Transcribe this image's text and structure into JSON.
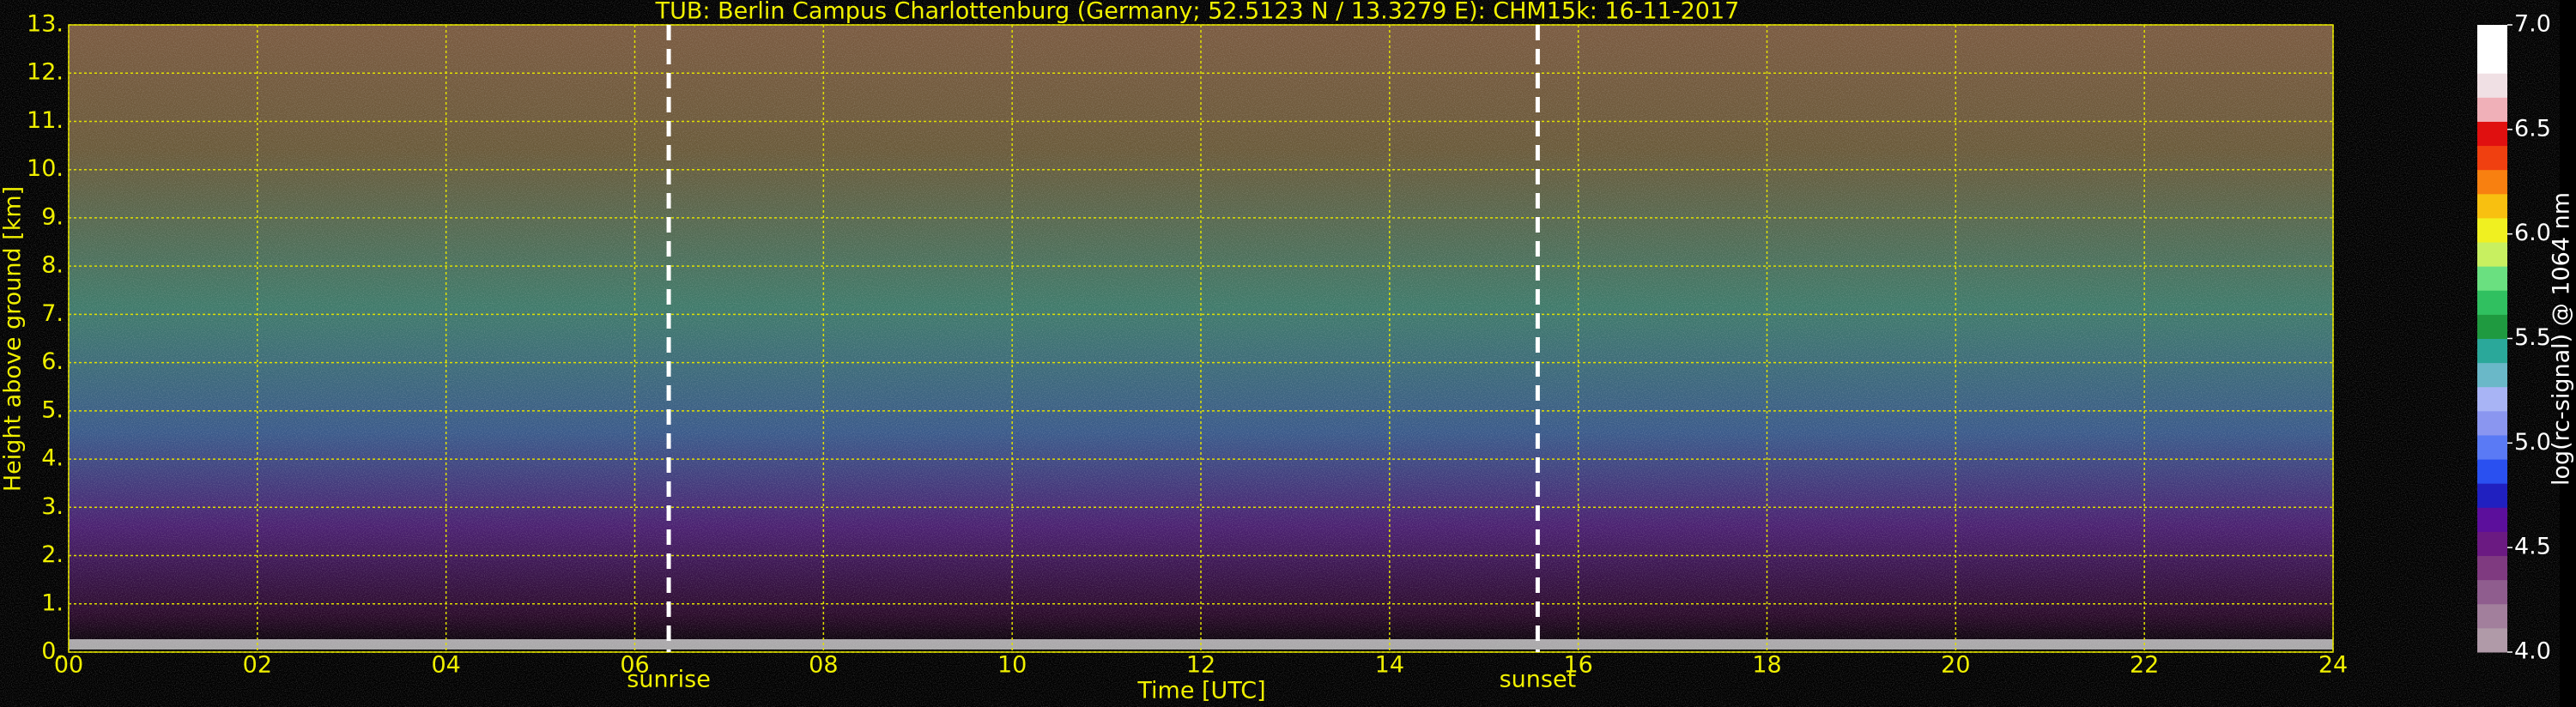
{
  "chart_data": {
    "type": "heatmap",
    "title": "TUB: Berlin Campus Charlottenburg (Germany; 52.5123 N / 13.3279 E):    CHM15k: 16-11-2017",
    "x_label": "Time [UTC]",
    "y_label": "Height above ground [km]",
    "xlim": [
      0,
      24
    ],
    "xticks": [
      {
        "value": 0,
        "label": "00"
      },
      {
        "value": 2,
        "label": "02"
      },
      {
        "value": 4,
        "label": "04"
      },
      {
        "value": 6,
        "label": "06"
      },
      {
        "value": 8,
        "label": "08"
      },
      10,
      12,
      14,
      16,
      18,
      20,
      22,
      24
    ],
    "ylim": [
      0,
      13
    ],
    "yticks": [
      {
        "value": 0,
        "label": "0."
      },
      {
        "value": 1,
        "label": "1."
      },
      {
        "value": 2,
        "label": "2."
      },
      {
        "value": 3,
        "label": "3."
      },
      {
        "value": 4,
        "label": "4."
      },
      {
        "value": 5,
        "label": "5."
      },
      {
        "value": 6,
        "label": "6."
      },
      {
        "value": 7,
        "label": "7."
      },
      {
        "value": 8,
        "label": "8."
      },
      {
        "value": 9,
        "label": "9."
      },
      {
        "value": 10,
        "label": "10."
      },
      {
        "value": 11,
        "label": "11."
      },
      {
        "value": 12,
        "label": "12."
      },
      {
        "value": 13,
        "label": "13."
      }
    ],
    "grid": true,
    "grid_color": "#e0e000",
    "text_color": "#f0f000",
    "annotations": [
      {
        "label": "sunrise",
        "x": 6.36
      },
      {
        "label": "sunset",
        "x": 15.57
      }
    ],
    "colorbar": {
      "label": "log(rc-signal) @ 1064 nm",
      "lim": [
        4,
        7
      ],
      "ticks": [
        {
          "value": 4,
          "label": "4.0"
        },
        4.5,
        {
          "value": 5,
          "label": "5.0"
        },
        5.5,
        {
          "value": 6,
          "label": "6.0"
        },
        6.5,
        {
          "value": 7,
          "label": "7.0"
        }
      ],
      "colors": [
        "#b09aa8",
        "#a27f9c",
        "#8f5d8e",
        "#7f3a80",
        "#6b1a82",
        "#5c0f9c",
        "#2020c0",
        "#2a50f0",
        "#5a7af5",
        "#8a96f0",
        "#a8b4f5",
        "#6ab8c8",
        "#2aa89a",
        "#1f9a40",
        "#30c060",
        "#6ae080",
        "#c8f060",
        "#f0f020",
        "#f8c010",
        "#f88010",
        "#f04010",
        "#e01010",
        "#f0b0b8",
        "#f0e0e4",
        "#ffffff",
        "#ffffff"
      ]
    }
  }
}
